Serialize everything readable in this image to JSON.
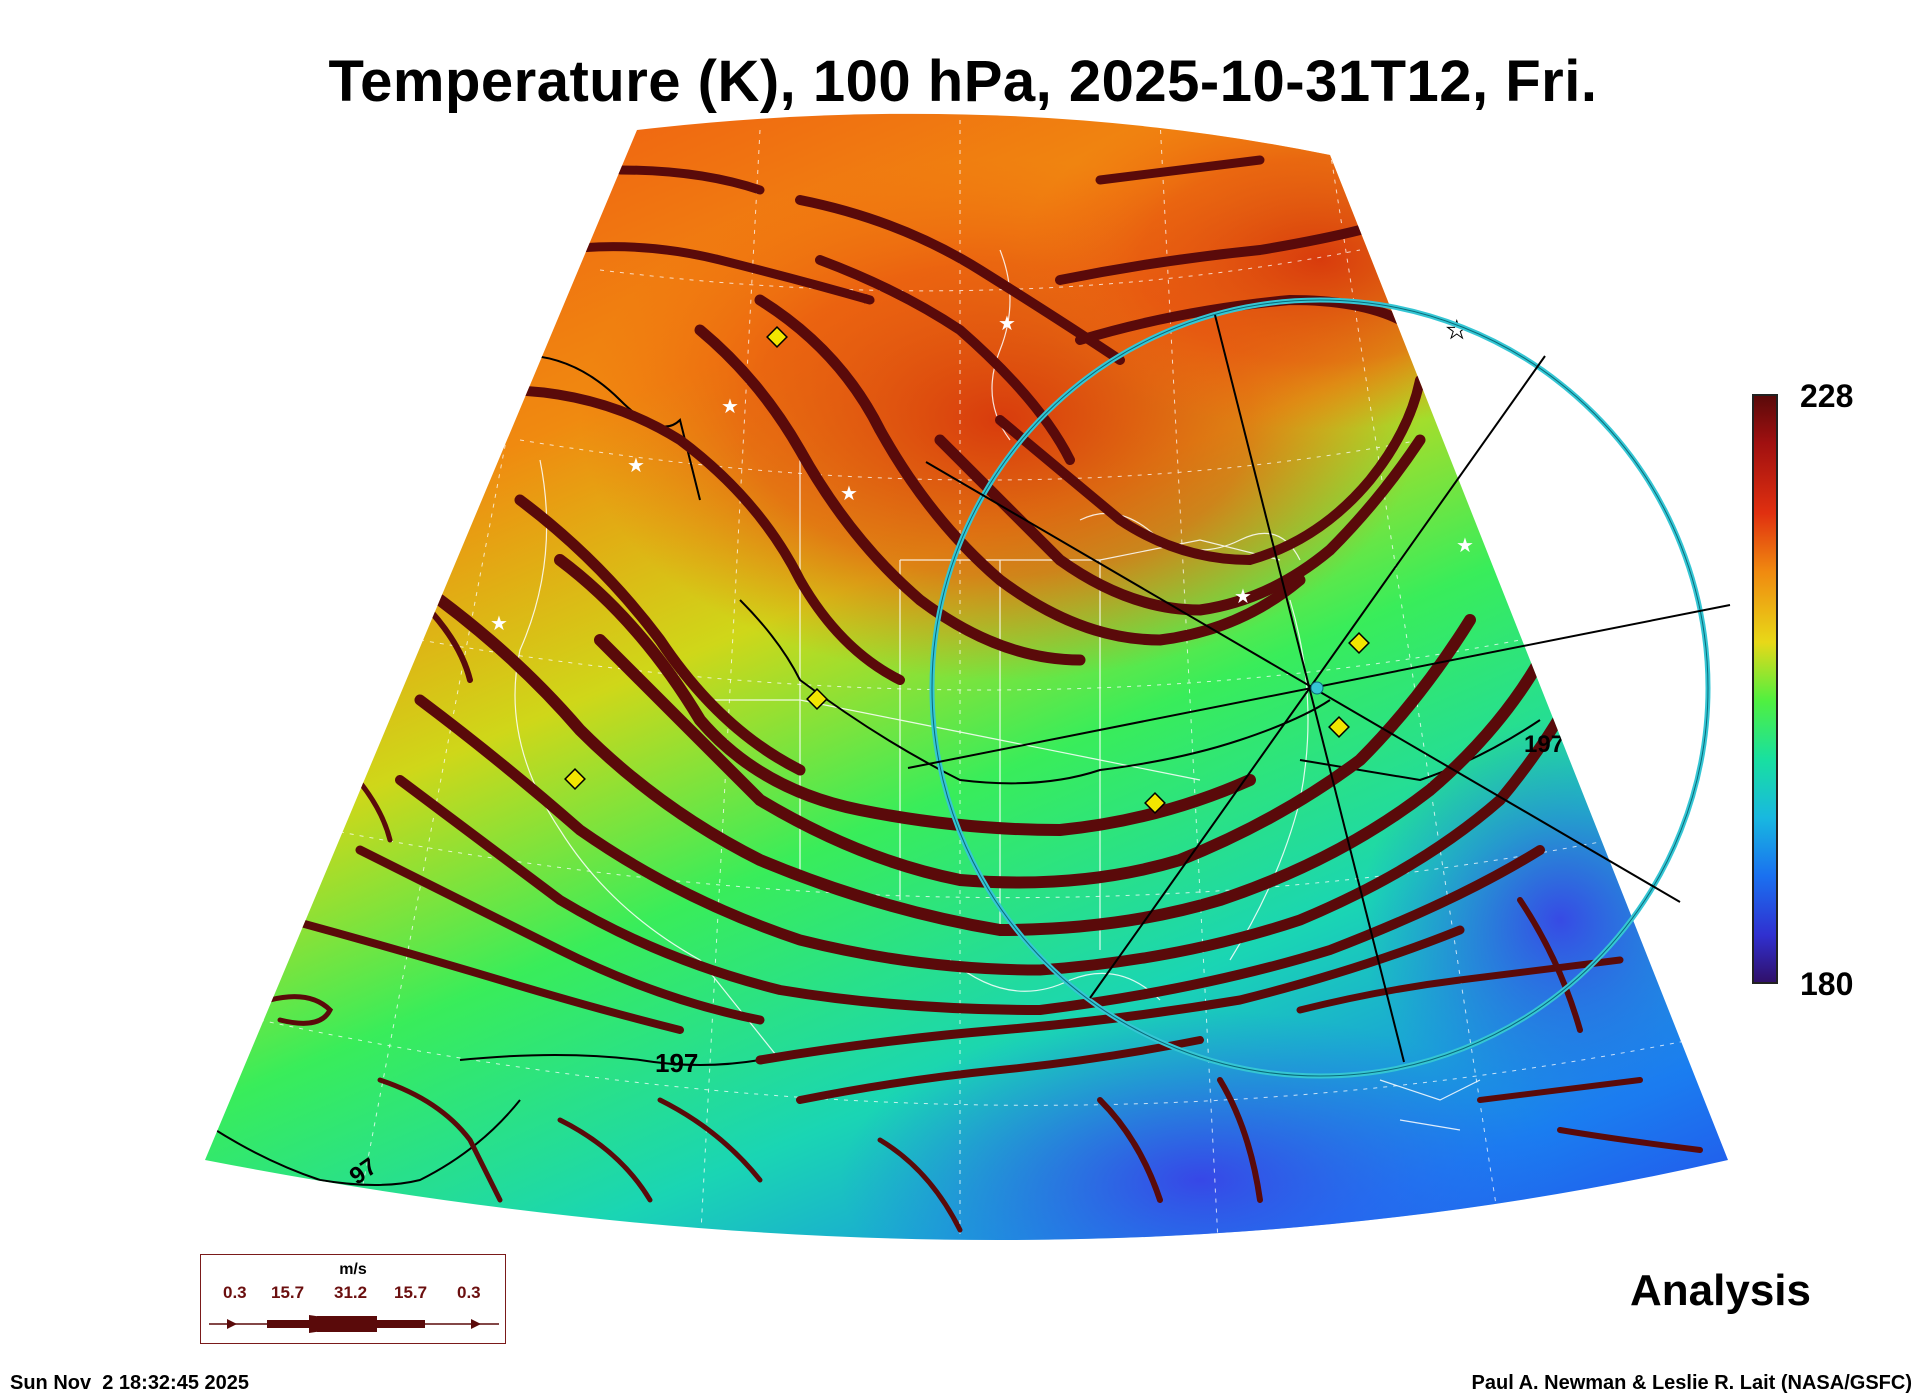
{
  "title": "Temperature (K), 100 hPa, 2025-10-31T12, Fri.",
  "colorbar": {
    "max_label": "228",
    "min_label": "180"
  },
  "contours": {
    "labels": [
      "197",
      "197",
      "97"
    ]
  },
  "legend": {
    "units": "m/s",
    "values": [
      "0.3",
      "15.7",
      "31.2",
      "15.7",
      "0.3"
    ]
  },
  "analysis_label": "Analysis",
  "footer": {
    "timestamp": "Sun Nov  2 18:32:45 2025",
    "credit": "Paul A. Newman & Leslie R. Lait (NASA/GSFC)"
  },
  "colors": {
    "streamline": "#5a0a0a",
    "circle": "#35c6d4",
    "marker_diamond": "#f2e600",
    "coast": "#ffffff"
  }
}
